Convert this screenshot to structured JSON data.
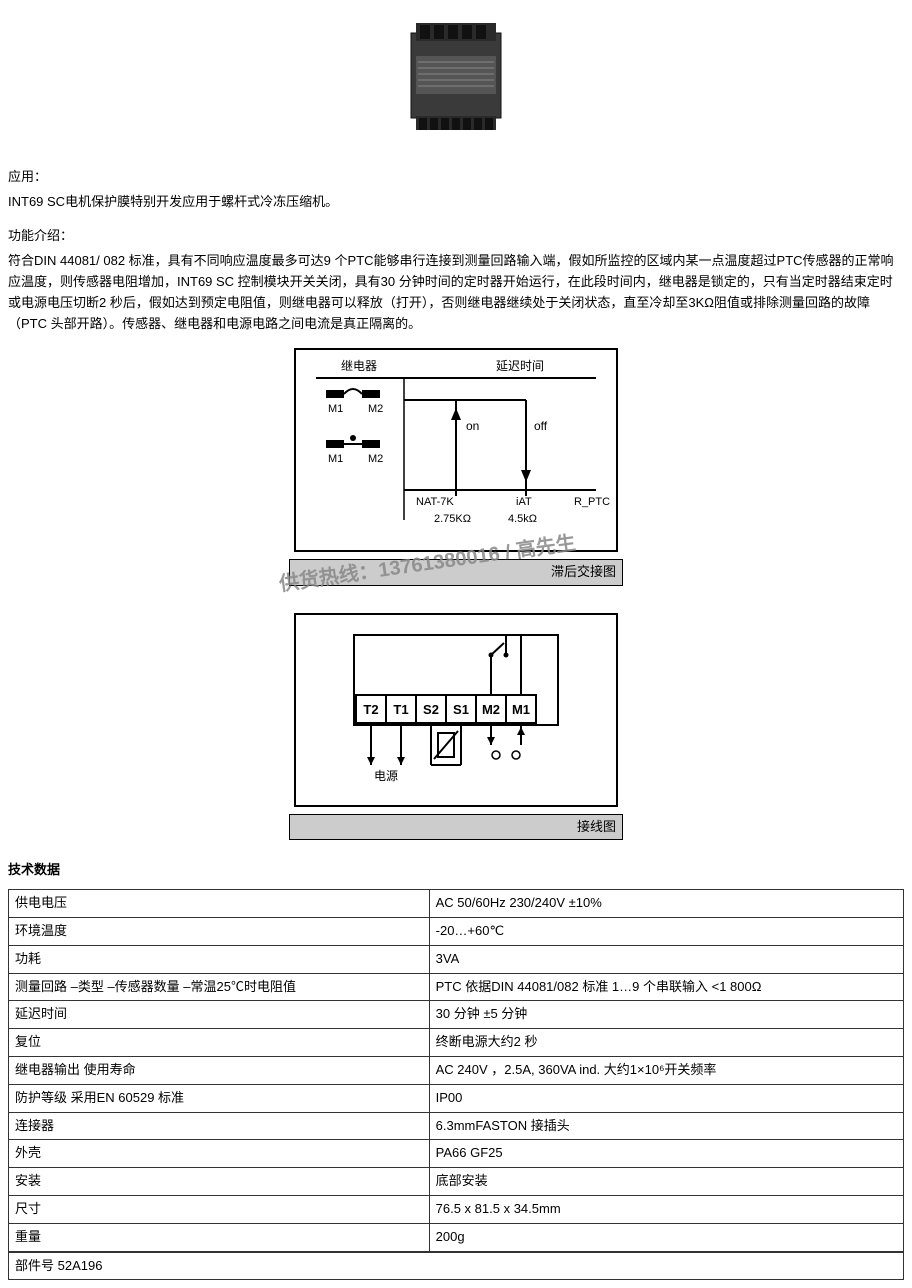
{
  "product_image": {
    "body_color": "#3a3a3a",
    "top_color": "#2a2a2a",
    "terminal_color": "#1a1a1a",
    "label_color": "#555555"
  },
  "intro": {
    "app_label": "应用：",
    "app_text": "INT69 SC电机保护膜特别开发应用于螺杆式冷冻压缩机。",
    "func_label": "功能介绍：",
    "func_text": "符合DIN 44081/ 082 标准，具有不同响应温度最多可达9 个PTC能够串行连接到测量回路输入端，假如所监控的区域内某一点温度超过PTC传感器的正常响应温度，则传感器电阻增加，INT69 SC 控制模块开关关闭，具有30 分钟时间的定时器开始运行，在此段时间内，继电器是锁定的，只有当定时器结束定时或电源电压切断2 秒后，假如达到预定电阻值，则继电器可以释放（打开），否则继电器继续处于关闭状态，直至冷却至3KΩ阻值或排除测量回路的故障（PTC 头部开路）。传感器、继电器和电源电路之间电流是真正隔离的。"
  },
  "diagram1": {
    "title_left": "继电器",
    "title_right": "延迟时间",
    "m1": "M1",
    "m2": "M2",
    "on": "on",
    "off": "off",
    "nat": "NAT-7K",
    "iat": "iAT",
    "rptc": "R_PTC",
    "v1": "2.75KΩ",
    "v2": "4.5kΩ",
    "caption": "滞后交接图",
    "line_color": "#000000",
    "fill_color": "#000000"
  },
  "watermark_text": "供货热线：13761380016 / 高先生",
  "diagram2": {
    "t2": "T2",
    "t1": "T1",
    "s2": "S2",
    "s1": "S1",
    "m2": "M2",
    "m1": "M1",
    "power": "电源",
    "caption": "接线图",
    "line_color": "#000000"
  },
  "tech": {
    "title": "技术数据",
    "rows": [
      [
        "供电电压",
        "AC 50/60Hz 230/240V ±10%"
      ],
      [
        "环境温度",
        "-20…+60℃"
      ],
      [
        "功耗",
        "3VA"
      ],
      [
        "测量回路 –类型 –传感器数量 –常温25℃时电阻值",
        "PTC 依据DIN 44081/082 标准 1…9 个串联输入 <1 800Ω"
      ],
      [
        "延迟时间",
        "30 分钟 ±5 分钟"
      ],
      [
        "复位",
        "终断电源大约2 秒"
      ],
      [
        "继电器输出 使用寿命",
        "AC 240V ，2.5A, 360VA ind. 大约1×10⁶开关频率"
      ],
      [
        "防护等级 采用EN 60529 标准",
        "IP00"
      ],
      [
        "连接器",
        "6.3mmFASTON 接插头"
      ],
      [
        "外壳",
        "PA66 GF25"
      ],
      [
        "安装",
        "底部安装"
      ],
      [
        "尺寸",
        "76.5 x 81.5 x 34.5mm"
      ],
      [
        "重量",
        "200g"
      ]
    ],
    "part_label": "部件号 52A196"
  }
}
